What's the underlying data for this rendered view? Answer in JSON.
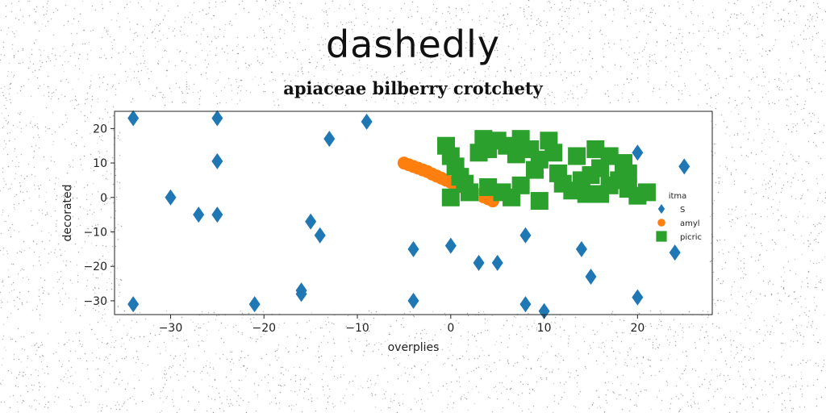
{
  "suptitle": "dashedly",
  "chart_data": {
    "type": "scatter",
    "title": "apiaceae bilberry crotchety",
    "xlabel": "overplies",
    "ylabel": "decorated",
    "xlim": [
      -36,
      28
    ],
    "ylim": [
      -34,
      25
    ],
    "xticks": [
      -30,
      -20,
      -10,
      0,
      10,
      20
    ],
    "yticks": [
      -30,
      -20,
      -10,
      0,
      10,
      20
    ],
    "grid": false,
    "legend": {
      "title": "itma",
      "placement": "center-right"
    },
    "series": [
      {
        "name": "S",
        "marker": "diamond",
        "color": "#1f77b4",
        "points": [
          [
            -34,
            23
          ],
          [
            -34,
            -31
          ],
          [
            -30,
            0
          ],
          [
            -27,
            -5
          ],
          [
            -25,
            23
          ],
          [
            -25,
            10.5
          ],
          [
            -25,
            -5
          ],
          [
            -21,
            -31
          ],
          [
            -16,
            -27
          ],
          [
            -16,
            -28
          ],
          [
            -15,
            -7
          ],
          [
            -14,
            -11
          ],
          [
            -13,
            17
          ],
          [
            -9,
            22
          ],
          [
            -4,
            -15
          ],
          [
            -4,
            -30
          ],
          [
            0,
            -14
          ],
          [
            3,
            -19
          ],
          [
            5,
            -19
          ],
          [
            8,
            -11
          ],
          [
            8,
            -31
          ],
          [
            10,
            -33
          ],
          [
            14,
            -15
          ],
          [
            15,
            -23
          ],
          [
            20,
            13
          ],
          [
            20,
            -29
          ],
          [
            24,
            -16
          ],
          [
            25,
            9
          ]
        ]
      },
      {
        "name": "amyl",
        "marker": "circle",
        "color": "#ff7f0e",
        "points": [
          [
            -5,
            10
          ],
          [
            -4.5,
            9.5
          ],
          [
            -4,
            9
          ],
          [
            -3.5,
            8.5
          ],
          [
            -3,
            8
          ],
          [
            -2.5,
            7.5
          ],
          [
            -2,
            6.8
          ],
          [
            -1.5,
            6.2
          ],
          [
            -1,
            5.6
          ],
          [
            -0.5,
            5
          ],
          [
            0,
            4.4
          ],
          [
            0.5,
            3.8
          ],
          [
            1,
            3.2
          ],
          [
            1.5,
            2.6
          ],
          [
            2,
            2
          ],
          [
            2.5,
            1.4
          ],
          [
            3,
            0.8
          ],
          [
            3.5,
            0.2
          ],
          [
            4,
            -0.4
          ],
          [
            4.5,
            -1
          ]
        ]
      },
      {
        "name": "picric",
        "marker": "square",
        "color": "#2ca02c",
        "points": [
          [
            -0.5,
            15
          ],
          [
            0,
            12
          ],
          [
            0.5,
            9
          ],
          [
            1,
            6
          ],
          [
            1.5,
            4
          ],
          [
            2,
            1.5
          ],
          [
            0,
            0
          ],
          [
            3,
            13
          ],
          [
            3.5,
            17
          ],
          [
            4,
            14
          ],
          [
            5,
            16.5
          ],
          [
            6,
            15
          ],
          [
            7,
            12.5
          ],
          [
            7.5,
            17
          ],
          [
            8.5,
            14
          ],
          [
            9.5,
            11
          ],
          [
            10.5,
            16.5
          ],
          [
            11,
            13
          ],
          [
            9,
            8
          ],
          [
            11.5,
            7
          ],
          [
            4,
            3
          ],
          [
            5.5,
            1.5
          ],
          [
            6.5,
            0
          ],
          [
            7.5,
            3.5
          ],
          [
            9.5,
            -1
          ],
          [
            12,
            4
          ],
          [
            13,
            2
          ],
          [
            14,
            5
          ],
          [
            15,
            6.5
          ],
          [
            16,
            1
          ],
          [
            17,
            3.5
          ],
          [
            18,
            5
          ],
          [
            19,
            2.5
          ],
          [
            20,
            0.5
          ],
          [
            21,
            1.5
          ],
          [
            13.5,
            12
          ],
          [
            15.5,
            14
          ],
          [
            17,
            12
          ],
          [
            18.5,
            10
          ],
          [
            19,
            7
          ],
          [
            16,
            8.5
          ],
          [
            14.5,
            1
          ]
        ]
      }
    ]
  }
}
